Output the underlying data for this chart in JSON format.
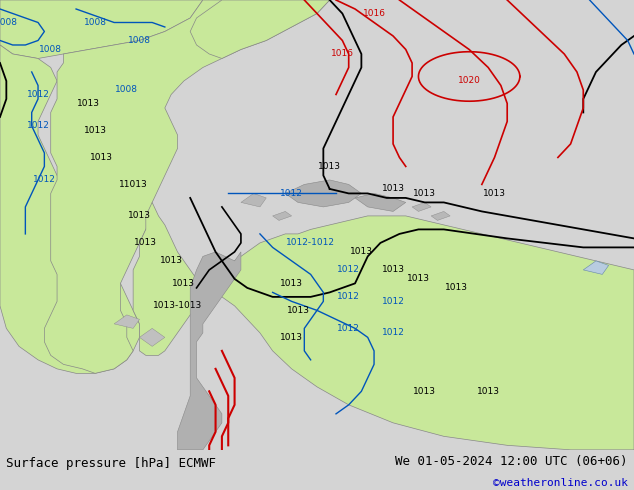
{
  "title_left": "Surface pressure [hPa] ECMWF",
  "title_right": "We 01-05-2024 12:00 UTC (06+06)",
  "credit": "©weatheronline.co.uk",
  "bg_map_color": "#d4d4d4",
  "land_green": "#c8e89a",
  "land_gray": "#aaaaaa",
  "ocean_color": "#d4d4d4",
  "fig_width": 6.34,
  "fig_height": 4.9,
  "dpi": 100,
  "bottom_bar_height": 0.082,
  "bottom_bar_color": "#f0f0f0",
  "title_fontsize": 9,
  "credit_fontsize": 8,
  "credit_color": "#0000cc",
  "contour_black": "#000000",
  "contour_blue": "#0055bb",
  "contour_red": "#cc0000"
}
